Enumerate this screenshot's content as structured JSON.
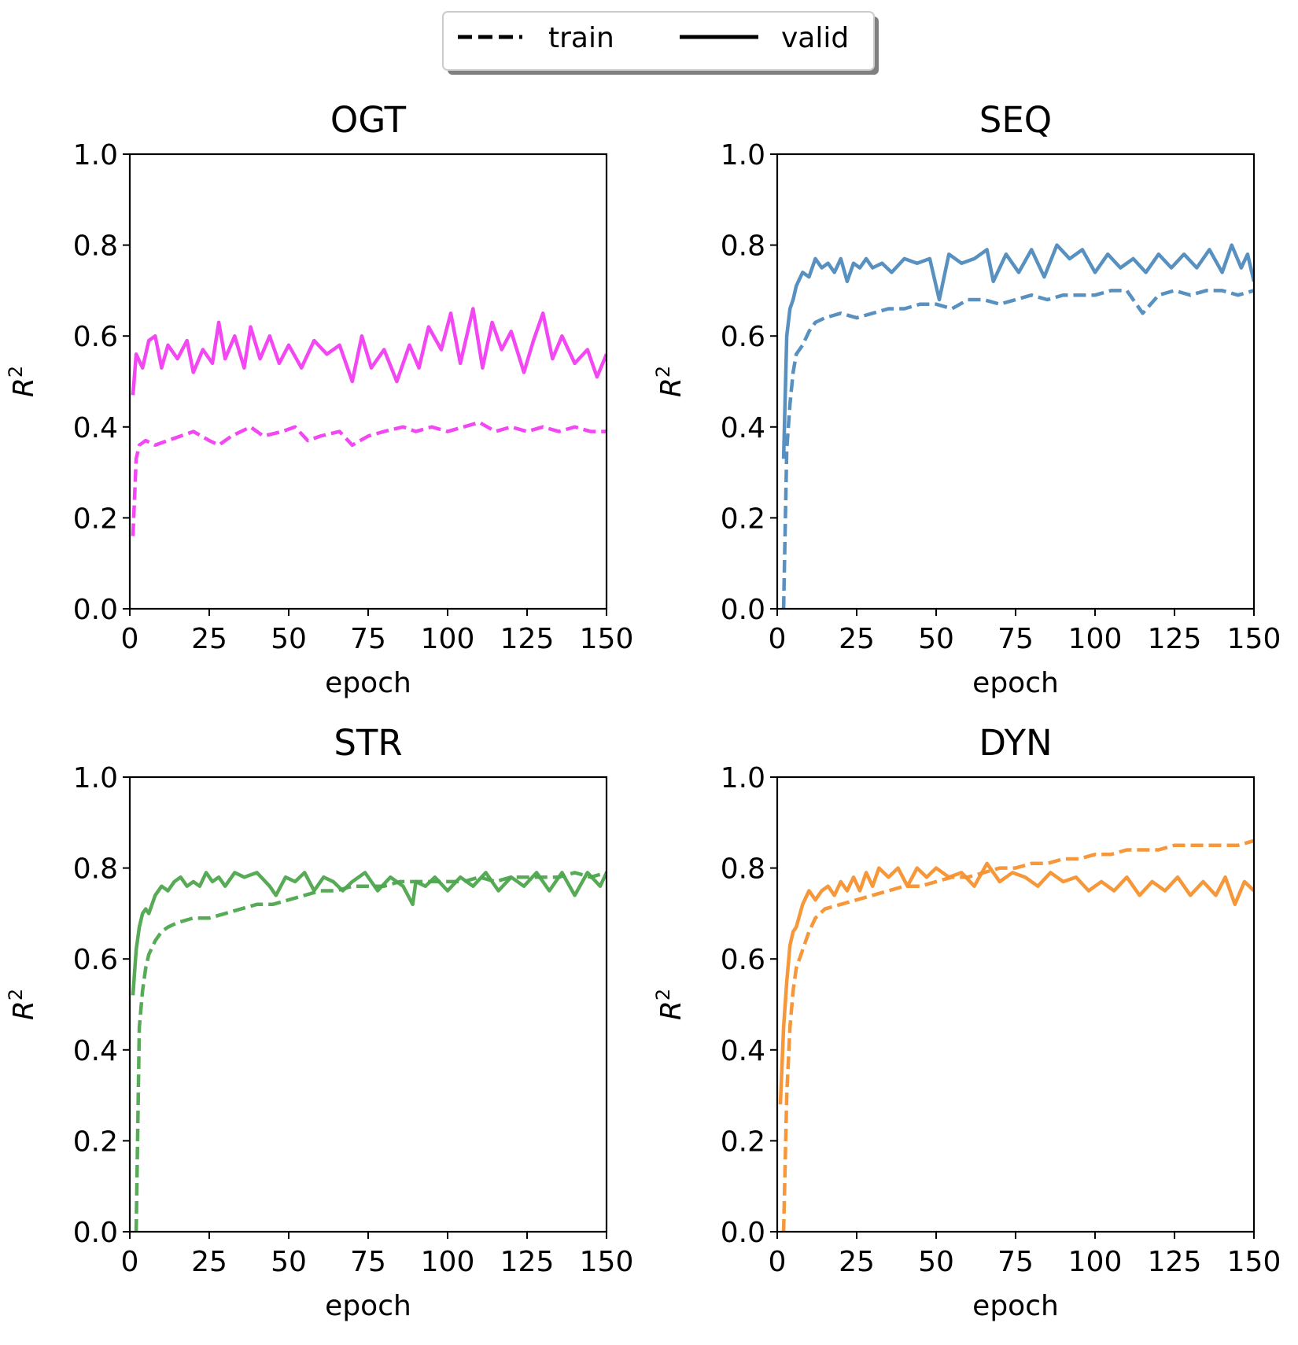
{
  "legend": {
    "entries": [
      {
        "label": "train",
        "style": "dashed"
      },
      {
        "label": "valid",
        "style": "solid"
      }
    ]
  },
  "chart_data": [
    {
      "type": "line",
      "title": "OGT",
      "xlabel": "epoch",
      "ylabel": "R^2",
      "xlim": [
        0,
        150
      ],
      "ylim": [
        0.0,
        1.0
      ],
      "xticks": [
        "0",
        "25",
        "50",
        "75",
        "100",
        "125",
        "150"
      ],
      "yticks": [
        "0.0",
        "0.2",
        "0.4",
        "0.6",
        "0.8",
        "1.0"
      ],
      "color": "#f23df2",
      "series": [
        {
          "name": "train",
          "style": "dashed",
          "x": [
            1,
            2,
            3,
            5,
            8,
            12,
            16,
            20,
            25,
            28,
            32,
            38,
            42,
            48,
            52,
            56,
            60,
            66,
            70,
            75,
            80,
            86,
            90,
            95,
            100,
            105,
            110,
            115,
            120,
            125,
            130,
            135,
            140,
            145,
            150
          ],
          "y": [
            0.16,
            0.33,
            0.36,
            0.37,
            0.36,
            0.37,
            0.38,
            0.39,
            0.37,
            0.36,
            0.38,
            0.4,
            0.38,
            0.39,
            0.4,
            0.37,
            0.38,
            0.39,
            0.36,
            0.38,
            0.39,
            0.4,
            0.39,
            0.4,
            0.39,
            0.4,
            0.41,
            0.39,
            0.4,
            0.39,
            0.4,
            0.39,
            0.4,
            0.39,
            0.39
          ]
        },
        {
          "name": "valid",
          "style": "solid",
          "x": [
            1,
            2,
            4,
            6,
            8,
            10,
            12,
            15,
            18,
            20,
            23,
            26,
            28,
            30,
            33,
            36,
            38,
            41,
            44,
            47,
            50,
            54,
            58,
            62,
            66,
            70,
            73,
            76,
            80,
            84,
            88,
            91,
            94,
            98,
            101,
            104,
            108,
            111,
            114,
            117,
            120,
            124,
            127,
            130,
            133,
            136,
            140,
            144,
            147,
            150
          ],
          "y": [
            0.47,
            0.56,
            0.53,
            0.59,
            0.6,
            0.53,
            0.58,
            0.55,
            0.59,
            0.52,
            0.57,
            0.54,
            0.63,
            0.55,
            0.6,
            0.53,
            0.62,
            0.55,
            0.6,
            0.54,
            0.58,
            0.53,
            0.59,
            0.56,
            0.58,
            0.5,
            0.6,
            0.53,
            0.57,
            0.5,
            0.58,
            0.53,
            0.62,
            0.57,
            0.65,
            0.54,
            0.66,
            0.53,
            0.63,
            0.57,
            0.61,
            0.52,
            0.59,
            0.65,
            0.55,
            0.6,
            0.54,
            0.57,
            0.51,
            0.56
          ]
        }
      ]
    },
    {
      "type": "line",
      "title": "SEQ",
      "xlabel": "epoch",
      "ylabel": "R^2",
      "xlim": [
        0,
        150
      ],
      "ylim": [
        0.0,
        1.0
      ],
      "xticks": [
        "0",
        "25",
        "50",
        "75",
        "100",
        "125",
        "150"
      ],
      "yticks": [
        "0.0",
        "0.2",
        "0.4",
        "0.6",
        "0.8",
        "1.0"
      ],
      "color": "#4f8bbd",
      "series": [
        {
          "name": "train",
          "style": "dashed",
          "x": [
            2,
            3,
            4,
            5,
            6,
            8,
            10,
            12,
            15,
            20,
            25,
            30,
            35,
            40,
            45,
            50,
            55,
            60,
            65,
            70,
            75,
            80,
            85,
            90,
            95,
            100,
            105,
            110,
            113,
            115,
            120,
            125,
            130,
            135,
            140,
            145,
            150
          ],
          "y": [
            0.0,
            0.35,
            0.45,
            0.52,
            0.56,
            0.58,
            0.61,
            0.63,
            0.64,
            0.65,
            0.64,
            0.65,
            0.66,
            0.66,
            0.67,
            0.67,
            0.66,
            0.68,
            0.68,
            0.67,
            0.68,
            0.69,
            0.68,
            0.69,
            0.69,
            0.69,
            0.7,
            0.7,
            0.67,
            0.65,
            0.69,
            0.7,
            0.69,
            0.7,
            0.7,
            0.69,
            0.7
          ]
        },
        {
          "name": "valid",
          "style": "solid",
          "x": [
            2,
            3,
            4,
            5,
            6,
            8,
            10,
            12,
            14,
            16,
            18,
            20,
            22,
            24,
            26,
            28,
            30,
            33,
            36,
            40,
            44,
            48,
            51,
            54,
            58,
            62,
            66,
            68,
            72,
            76,
            80,
            84,
            88,
            92,
            96,
            100,
            104,
            108,
            112,
            116,
            120,
            124,
            128,
            132,
            136,
            140,
            143,
            146,
            148,
            150
          ],
          "y": [
            0.33,
            0.6,
            0.66,
            0.68,
            0.71,
            0.74,
            0.73,
            0.77,
            0.75,
            0.76,
            0.74,
            0.77,
            0.72,
            0.76,
            0.75,
            0.77,
            0.75,
            0.76,
            0.74,
            0.77,
            0.76,
            0.77,
            0.68,
            0.78,
            0.76,
            0.77,
            0.79,
            0.72,
            0.78,
            0.74,
            0.79,
            0.73,
            0.8,
            0.77,
            0.79,
            0.74,
            0.78,
            0.75,
            0.77,
            0.74,
            0.78,
            0.75,
            0.78,
            0.75,
            0.79,
            0.74,
            0.8,
            0.75,
            0.78,
            0.72
          ]
        }
      ]
    },
    {
      "type": "line",
      "title": "STR",
      "xlabel": "epoch",
      "ylabel": "R^2",
      "xlim": [
        0,
        150
      ],
      "ylim": [
        0.0,
        1.0
      ],
      "xticks": [
        "0",
        "25",
        "50",
        "75",
        "100",
        "125",
        "150"
      ],
      "yticks": [
        "0.0",
        "0.2",
        "0.4",
        "0.6",
        "0.8",
        "1.0"
      ],
      "color": "#4ea64e",
      "series": [
        {
          "name": "train",
          "style": "dashed",
          "x": [
            2,
            3,
            4,
            5,
            6,
            8,
            10,
            12,
            15,
            20,
            25,
            30,
            35,
            40,
            45,
            50,
            55,
            60,
            65,
            70,
            75,
            80,
            85,
            90,
            95,
            100,
            105,
            110,
            115,
            120,
            125,
            130,
            135,
            140,
            145,
            150
          ],
          "y": [
            0.0,
            0.45,
            0.53,
            0.58,
            0.61,
            0.64,
            0.66,
            0.67,
            0.68,
            0.69,
            0.69,
            0.7,
            0.71,
            0.72,
            0.72,
            0.73,
            0.74,
            0.75,
            0.75,
            0.76,
            0.76,
            0.76,
            0.77,
            0.77,
            0.77,
            0.77,
            0.77,
            0.78,
            0.77,
            0.78,
            0.78,
            0.78,
            0.78,
            0.79,
            0.78,
            0.79
          ]
        },
        {
          "name": "valid",
          "style": "solid",
          "x": [
            1,
            2,
            3,
            4,
            5,
            6,
            8,
            10,
            12,
            14,
            16,
            18,
            20,
            22,
            24,
            26,
            28,
            30,
            33,
            36,
            40,
            44,
            46,
            49,
            52,
            55,
            58,
            61,
            64,
            67,
            70,
            74,
            78,
            82,
            86,
            89,
            90,
            93,
            96,
            100,
            104,
            108,
            112,
            116,
            120,
            124,
            128,
            132,
            136,
            140,
            144,
            148,
            150
          ],
          "y": [
            0.52,
            0.62,
            0.67,
            0.7,
            0.71,
            0.7,
            0.74,
            0.76,
            0.75,
            0.77,
            0.78,
            0.76,
            0.77,
            0.76,
            0.79,
            0.77,
            0.78,
            0.76,
            0.79,
            0.78,
            0.79,
            0.76,
            0.74,
            0.78,
            0.77,
            0.79,
            0.75,
            0.78,
            0.77,
            0.75,
            0.77,
            0.79,
            0.75,
            0.78,
            0.76,
            0.72,
            0.77,
            0.76,
            0.78,
            0.75,
            0.78,
            0.76,
            0.79,
            0.75,
            0.78,
            0.76,
            0.79,
            0.75,
            0.79,
            0.74,
            0.79,
            0.76,
            0.79
          ]
        }
      ]
    },
    {
      "type": "line",
      "title": "DYN",
      "xlabel": "epoch",
      "ylabel": "R^2",
      "xlim": [
        0,
        150
      ],
      "ylim": [
        0.0,
        1.0
      ],
      "xticks": [
        "0",
        "25",
        "50",
        "75",
        "100",
        "125",
        "150"
      ],
      "yticks": [
        "0.0",
        "0.2",
        "0.4",
        "0.6",
        "0.8",
        "1.0"
      ],
      "color": "#f5912f",
      "series": [
        {
          "name": "train",
          "style": "dashed",
          "x": [
            2,
            3,
            4,
            5,
            6,
            8,
            10,
            12,
            15,
            20,
            25,
            30,
            35,
            40,
            45,
            50,
            55,
            60,
            65,
            70,
            75,
            80,
            85,
            90,
            95,
            100,
            105,
            110,
            115,
            120,
            125,
            130,
            135,
            140,
            145,
            150
          ],
          "y": [
            0.0,
            0.3,
            0.45,
            0.53,
            0.58,
            0.62,
            0.66,
            0.69,
            0.71,
            0.72,
            0.73,
            0.74,
            0.75,
            0.76,
            0.76,
            0.77,
            0.78,
            0.78,
            0.79,
            0.8,
            0.8,
            0.81,
            0.81,
            0.82,
            0.82,
            0.83,
            0.83,
            0.84,
            0.84,
            0.84,
            0.85,
            0.85,
            0.85,
            0.85,
            0.85,
            0.86
          ]
        },
        {
          "name": "valid",
          "style": "solid",
          "x": [
            1,
            2,
            3,
            4,
            5,
            6,
            8,
            10,
            12,
            14,
            16,
            18,
            20,
            22,
            24,
            26,
            28,
            30,
            32,
            35,
            38,
            41,
            44,
            47,
            50,
            54,
            58,
            62,
            66,
            70,
            74,
            78,
            82,
            86,
            90,
            94,
            98,
            102,
            106,
            110,
            114,
            118,
            122,
            126,
            130,
            134,
            138,
            141,
            144,
            147,
            150
          ],
          "y": [
            0.28,
            0.45,
            0.55,
            0.63,
            0.66,
            0.67,
            0.72,
            0.75,
            0.73,
            0.75,
            0.76,
            0.74,
            0.77,
            0.75,
            0.78,
            0.75,
            0.79,
            0.76,
            0.8,
            0.78,
            0.8,
            0.76,
            0.8,
            0.78,
            0.8,
            0.78,
            0.79,
            0.76,
            0.81,
            0.77,
            0.79,
            0.78,
            0.76,
            0.79,
            0.77,
            0.78,
            0.75,
            0.77,
            0.75,
            0.78,
            0.74,
            0.77,
            0.75,
            0.78,
            0.74,
            0.77,
            0.74,
            0.78,
            0.72,
            0.77,
            0.75
          ]
        }
      ]
    }
  ]
}
